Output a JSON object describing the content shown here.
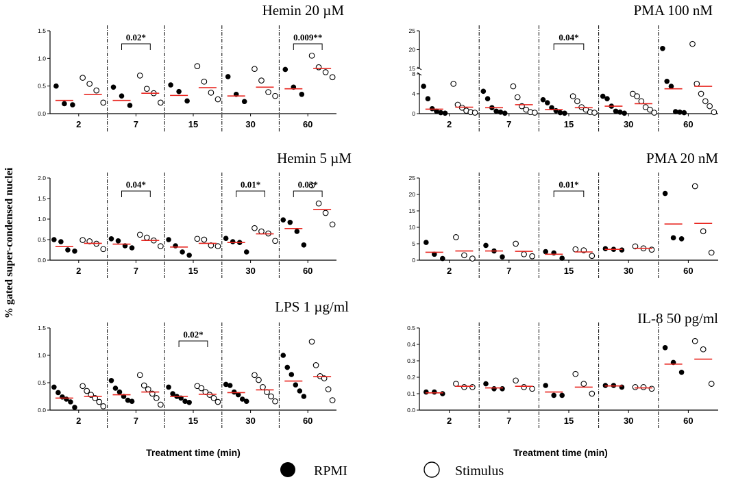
{
  "figure": {
    "y_axis_label": "% gated super-condensed nuclei",
    "x_axis_label": "Treatment time (min)",
    "legend": [
      {
        "label": "RPMI",
        "marker": "filled-circle"
      },
      {
        "label": "Stimulus",
        "marker": "open-circle"
      }
    ],
    "colors": {
      "median": "#e8251f",
      "points": "#000000"
    }
  },
  "chart_data": [
    {
      "id": "hemin20",
      "type": "scatter",
      "title": "Hemin 20 µM",
      "categories": [
        "2",
        "7",
        "15",
        "30",
        "60"
      ],
      "ylim": [
        0,
        1.5
      ],
      "yticks": [
        0.0,
        0.5,
        1.0,
        1.5
      ],
      "ytick_labels": [
        "0.0",
        "0.5",
        "1.0",
        "1.5"
      ],
      "series": [
        {
          "name": "RPMI",
          "points": [
            [
              0.5,
              0.18,
              0.16
            ],
            [
              0.48,
              0.32,
              0.15
            ],
            [
              0.52,
              0.4,
              0.23
            ],
            [
              0.67,
              0.35,
              0.22
            ],
            [
              0.8,
              0.48,
              0.35
            ]
          ],
          "medians": [
            0.24,
            0.24,
            0.33,
            0.32,
            0.45
          ]
        },
        {
          "name": "Stimulus",
          "points": [
            [
              0.65,
              0.54,
              0.42,
              0.2
            ],
            [
              0.69,
              0.45,
              0.37,
              0.2
            ],
            [
              0.86,
              0.58,
              0.38,
              0.26
            ],
            [
              0.81,
              0.6,
              0.39,
              0.32
            ],
            [
              1.05,
              0.84,
              0.75,
              0.66
            ]
          ],
          "medians": [
            0.35,
            0.37,
            0.47,
            0.48,
            0.82
          ]
        }
      ],
      "significance": [
        {
          "category": "7",
          "label": "0.02*"
        },
        {
          "category": "60",
          "label": "0.009**"
        }
      ]
    },
    {
      "id": "hemin5",
      "type": "scatter",
      "title": "Hemin 5 µM",
      "categories": [
        "2",
        "7",
        "15",
        "30",
        "60"
      ],
      "ylim": [
        0,
        2.0
      ],
      "yticks": [
        0.0,
        0.5,
        1.0,
        1.5,
        2.0
      ],
      "ytick_labels": [
        "0.0",
        "0.5",
        "1.0",
        "1.5",
        "2.0"
      ],
      "series": [
        {
          "name": "RPMI",
          "points": [
            [
              0.5,
              0.45,
              0.25,
              0.22
            ],
            [
              0.52,
              0.47,
              0.35,
              0.3
            ],
            [
              0.5,
              0.35,
              0.2,
              0.12
            ],
            [
              0.53,
              0.45,
              0.43,
              0.2
            ],
            [
              0.98,
              0.92,
              0.7,
              0.37
            ]
          ],
          "medians": [
            0.33,
            0.39,
            0.32,
            0.43,
            0.77
          ]
        },
        {
          "name": "Stimulus",
          "points": [
            [
              0.49,
              0.46,
              0.4,
              0.27
            ],
            [
              0.62,
              0.55,
              0.48,
              0.34
            ],
            [
              0.52,
              0.5,
              0.36,
              0.34
            ],
            [
              0.78,
              0.7,
              0.65,
              0.47
            ],
            [
              1.82,
              1.38,
              1.15,
              0.87
            ]
          ],
          "medians": [
            0.41,
            0.48,
            0.41,
            0.64,
            1.23
          ]
        }
      ],
      "significance": [
        {
          "category": "7",
          "label": "0.04*"
        },
        {
          "category": "30",
          "label": "0.01*"
        },
        {
          "category": "60",
          "label": "0.03*"
        }
      ]
    },
    {
      "id": "lps1",
      "type": "scatter",
      "title": "LPS 1 µg/ml",
      "categories": [
        "2",
        "7",
        "15",
        "30",
        "60"
      ],
      "ylim": [
        0,
        1.5
      ],
      "yticks": [
        0.0,
        0.5,
        1.0,
        1.5
      ],
      "ytick_labels": [
        "0.0",
        "0.5",
        "1.0",
        "1.5"
      ],
      "series": [
        {
          "name": "RPMI",
          "points": [
            [
              0.42,
              0.32,
              0.24,
              0.2,
              0.15,
              0.05
            ],
            [
              0.54,
              0.4,
              0.33,
              0.25,
              0.18,
              0.16
            ],
            [
              0.42,
              0.3,
              0.25,
              0.22,
              0.16,
              0.14
            ],
            [
              0.47,
              0.45,
              0.33,
              0.28,
              0.2,
              0.16
            ],
            [
              1.0,
              0.78,
              0.65,
              0.46,
              0.35,
              0.25
            ]
          ],
          "medians": [
            0.22,
            0.28,
            0.25,
            0.32,
            0.53
          ]
        },
        {
          "name": "Stimulus",
          "points": [
            [
              0.44,
              0.35,
              0.28,
              0.22,
              0.15,
              0.07
            ],
            [
              0.64,
              0.45,
              0.38,
              0.3,
              0.22,
              0.1
            ],
            [
              0.44,
              0.4,
              0.33,
              0.28,
              0.22,
              0.15
            ],
            [
              0.64,
              0.55,
              0.42,
              0.33,
              0.25,
              0.16
            ],
            [
              1.25,
              0.82,
              0.62,
              0.58,
              0.38,
              0.18
            ]
          ],
          "medians": [
            0.25,
            0.33,
            0.29,
            0.37,
            0.61
          ]
        }
      ],
      "significance": [
        {
          "category": "15",
          "label": "0.02*"
        }
      ]
    },
    {
      "id": "pma100",
      "type": "scatter",
      "title": "PMA 100 nM",
      "categories": [
        "2",
        "7",
        "15",
        "30",
        "60"
      ],
      "ylim": [
        0,
        25
      ],
      "axis_break": [
        8,
        15
      ],
      "yticks": [
        0,
        4,
        8,
        15,
        20,
        25
      ],
      "ytick_labels": [
        "0",
        "4",
        "8",
        "15",
        "20",
        "25"
      ],
      "series": [
        {
          "name": "RPMI",
          "points": [
            [
              5.5,
              3.0,
              1.0,
              0.5,
              0.2,
              0.1
            ],
            [
              4.5,
              3.0,
              1.2,
              0.5,
              0.3,
              0.1
            ],
            [
              2.8,
              2.2,
              1.2,
              0.6,
              0.2,
              0.1
            ],
            [
              3.5,
              3.0,
              1.5,
              0.5,
              0.3,
              0.1
            ],
            [
              20.3,
              6.5,
              5.5,
              0.4,
              0.3,
              0.2
            ]
          ],
          "medians": [
            0.9,
            1.2,
            0.8,
            1.5,
            5.0
          ]
        },
        {
          "name": "Stimulus",
          "points": [
            [
              6.0,
              1.8,
              1.2,
              0.6,
              0.3,
              0.2
            ],
            [
              5.5,
              3.3,
              1.5,
              0.8,
              0.3,
              0.2
            ],
            [
              3.5,
              2.5,
              1.3,
              0.8,
              0.3,
              0.2
            ],
            [
              4.0,
              3.5,
              2.5,
              1.3,
              0.8,
              0.2
            ],
            [
              21.5,
              6.0,
              4.0,
              2.5,
              1.5,
              0.3
            ]
          ],
          "medians": [
            1.3,
            1.8,
            1.2,
            2.0,
            5.5
          ]
        }
      ],
      "significance": [
        {
          "category": "15",
          "label": "0.04*"
        }
      ]
    },
    {
      "id": "pma20",
      "type": "scatter",
      "title": "PMA 20 nM",
      "categories": [
        "2",
        "7",
        "15",
        "30",
        "60"
      ],
      "ylim": [
        0,
        25
      ],
      "yticks": [
        0,
        5,
        10,
        15,
        20,
        25
      ],
      "ytick_labels": [
        "0",
        "5",
        "10",
        "15",
        "20",
        "25"
      ],
      "series": [
        {
          "name": "RPMI",
          "points": [
            [
              5.4,
              1.8,
              0.5
            ],
            [
              4.5,
              2.8,
              1.0
            ],
            [
              2.6,
              2.2,
              0.6
            ],
            [
              3.5,
              3.3,
              3.1
            ],
            [
              20.3,
              6.8,
              6.5
            ]
          ],
          "medians": [
            2.4,
            2.8,
            1.8,
            3.3,
            11.0
          ]
        },
        {
          "name": "Stimulus",
          "points": [
            [
              7.0,
              1.5,
              0.5
            ],
            [
              5.0,
              1.8,
              1.2
            ],
            [
              3.3,
              3.0,
              1.3
            ],
            [
              4.2,
              3.6,
              3.2
            ],
            [
              22.5,
              8.8,
              2.3
            ]
          ],
          "medians": [
            2.8,
            2.7,
            2.5,
            3.6,
            11.2
          ]
        }
      ],
      "significance": [
        {
          "category": "15",
          "label": "0.01*"
        }
      ]
    },
    {
      "id": "il8",
      "type": "scatter",
      "title": "IL-8 50 pg/ml",
      "categories": [
        "2",
        "7",
        "15",
        "30",
        "60"
      ],
      "ylim": [
        0,
        0.5
      ],
      "yticks": [
        0.0,
        0.1,
        0.2,
        0.3,
        0.4,
        0.5
      ],
      "ytick_labels": [
        "0.0",
        "0.1",
        "0.2",
        "0.3",
        "0.4",
        "0.5"
      ],
      "series": [
        {
          "name": "RPMI",
          "points": [
            [
              0.11,
              0.11,
              0.1
            ],
            [
              0.16,
              0.13,
              0.13
            ],
            [
              0.15,
              0.09,
              0.09
            ],
            [
              0.15,
              0.15,
              0.14
            ],
            [
              0.38,
              0.29,
              0.23
            ]
          ],
          "medians": [
            0.105,
            0.135,
            0.11,
            0.147,
            0.28
          ]
        },
        {
          "name": "Stimulus",
          "points": [
            [
              0.16,
              0.14,
              0.14
            ],
            [
              0.18,
              0.14,
              0.13
            ],
            [
              0.22,
              0.16,
              0.1
            ],
            [
              0.14,
              0.14,
              0.13
            ],
            [
              0.42,
              0.37,
              0.16
            ]
          ],
          "medians": [
            0.145,
            0.145,
            0.14,
            0.135,
            0.31
          ]
        }
      ],
      "significance": []
    }
  ]
}
